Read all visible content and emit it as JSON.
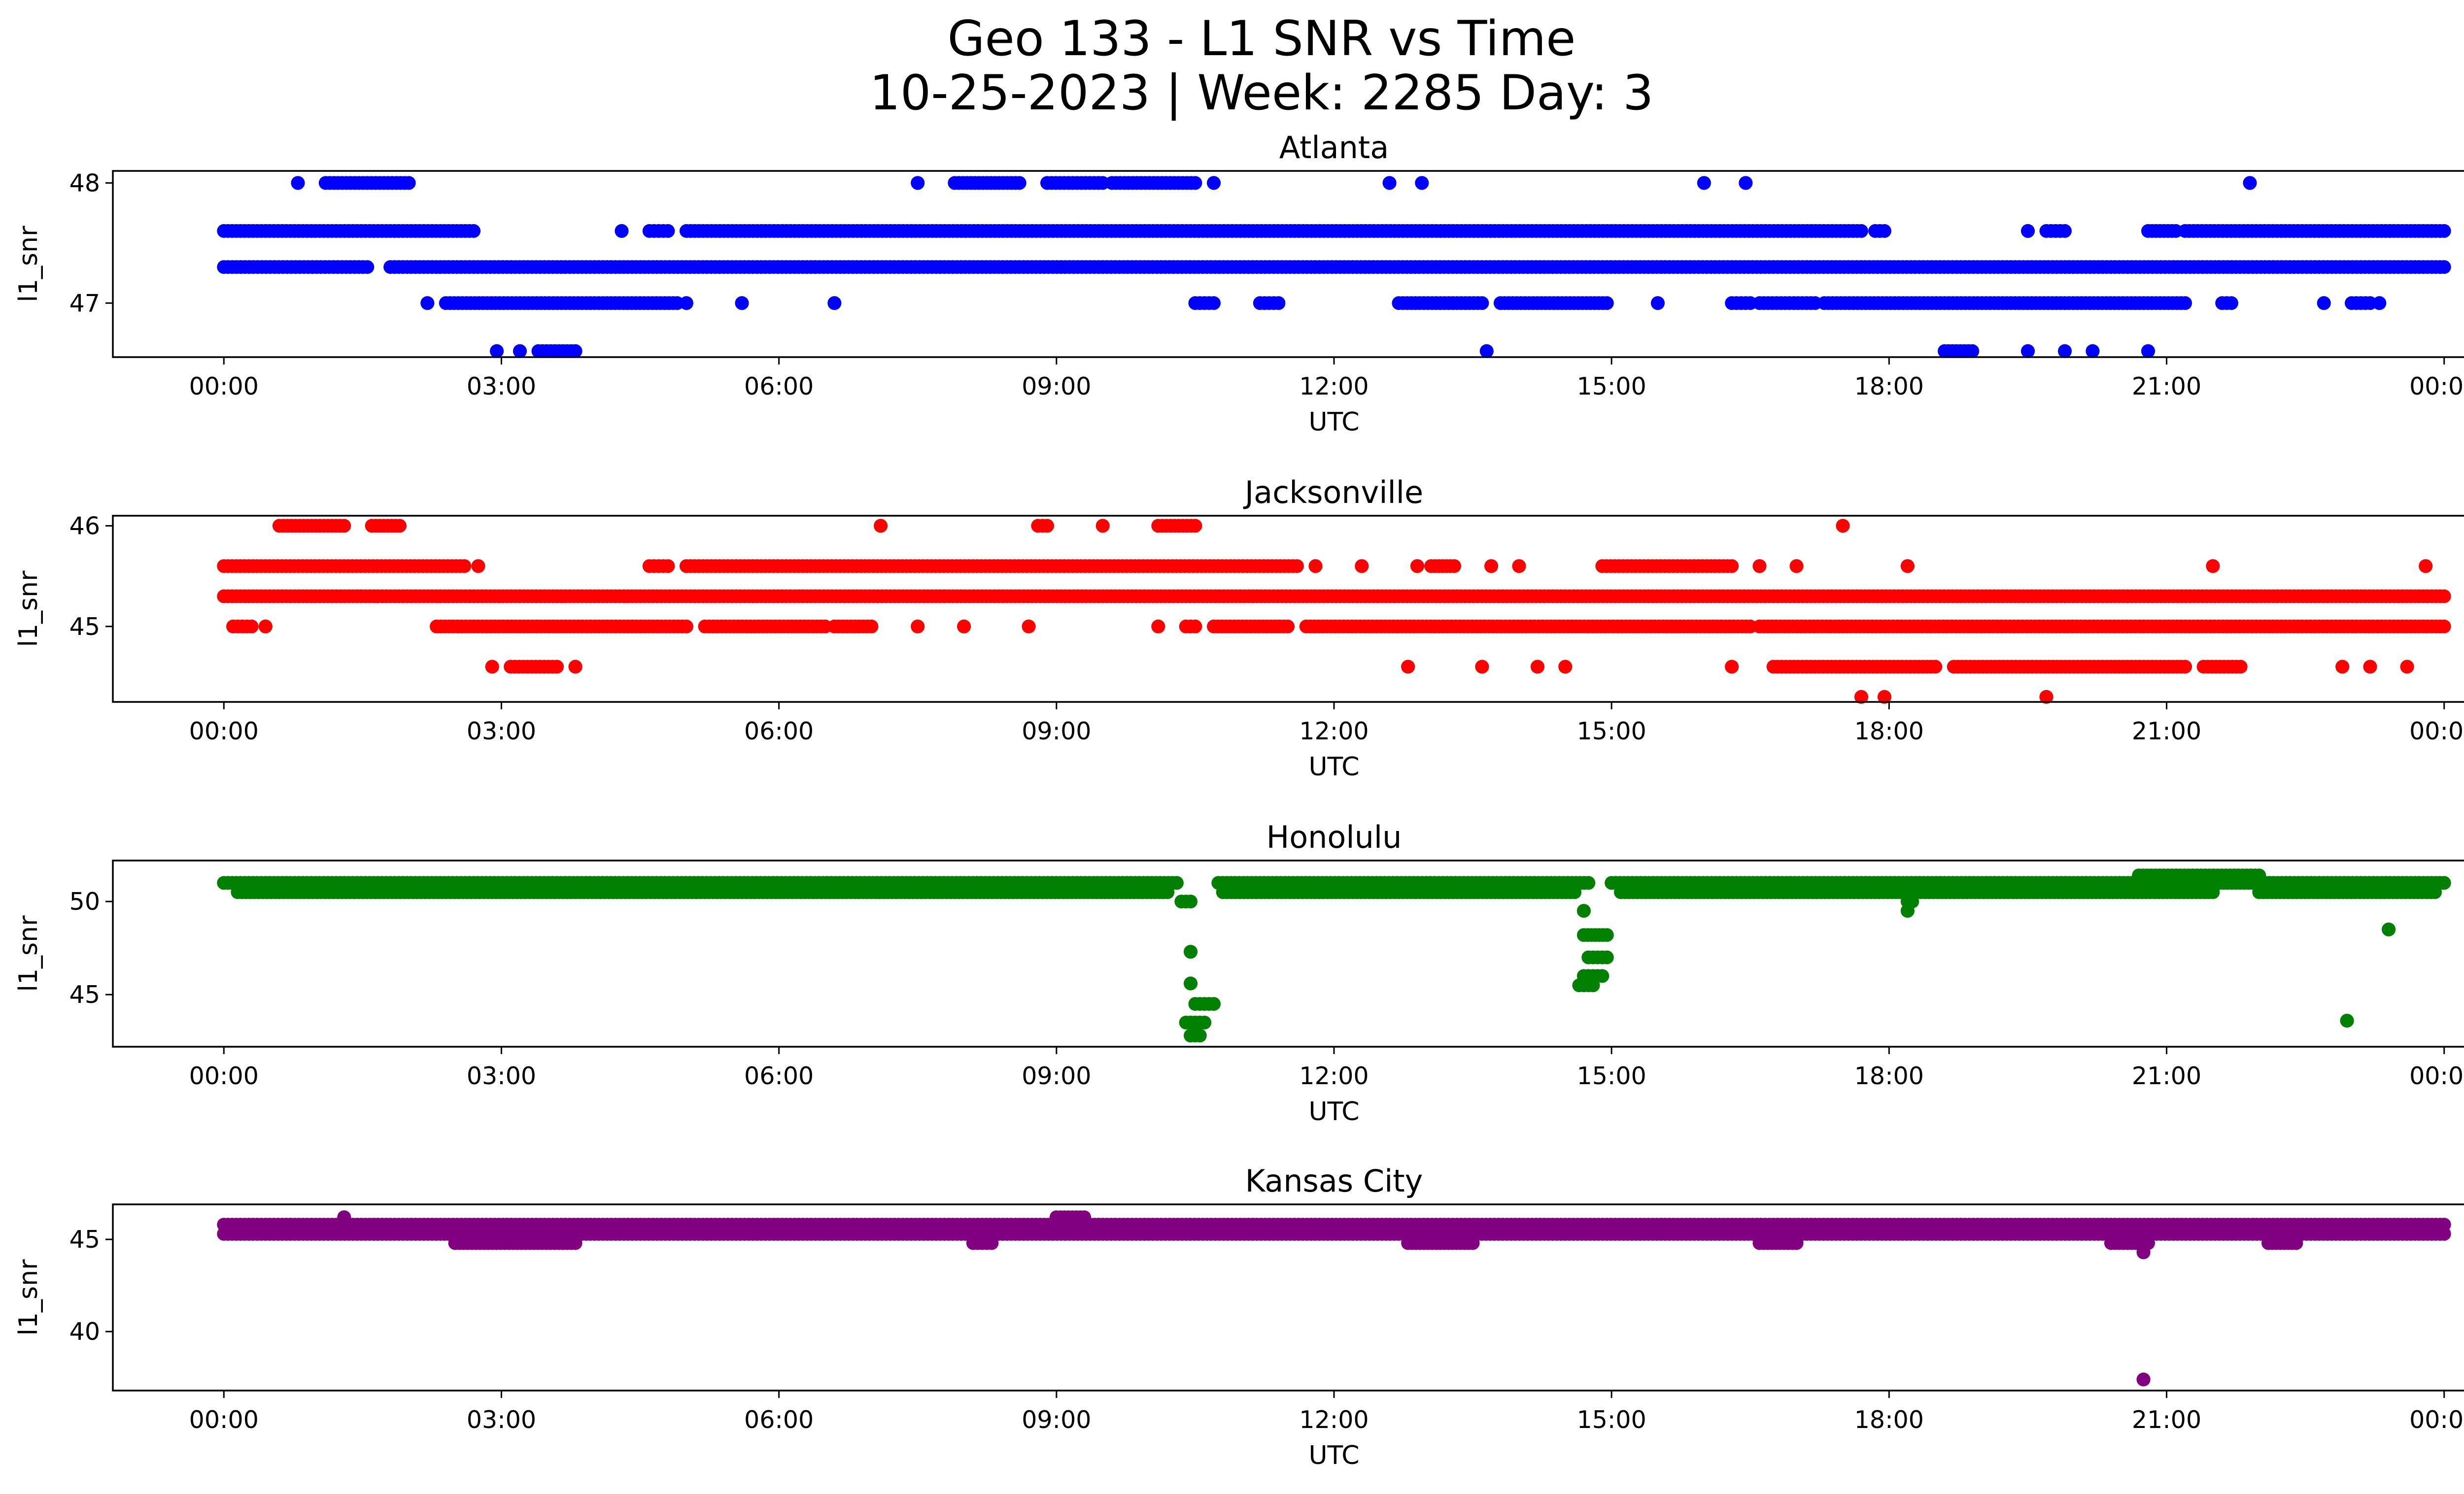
{
  "figure": {
    "title_line1": "Geo 133 - L1 SNR vs Time",
    "title_line2": "10-25-2023 | Week: 2285 Day: 3"
  },
  "chart_data": [
    {
      "type": "scatter",
      "title": "Atlanta",
      "xlabel": "UTC",
      "ylabel": "l1_snr",
      "color": "#0000ff",
      "xlim_hours": [
        -1.2,
        25.2
      ],
      "xticks": [
        "00:00",
        "03:00",
        "06:00",
        "09:00",
        "12:00",
        "15:00",
        "18:00",
        "21:00",
        "00:00"
      ],
      "ylim": [
        46.55,
        48.1
      ],
      "yticks": [
        47,
        48
      ],
      "grid": false,
      "series": [
        {
          "values": [
            {
              "y": 47.6,
              "x": [
                [
                  0.0,
                  2.7
                ],
                [
                  4.3,
                  4.3
                ],
                [
                  4.6,
                  4.8
                ],
                [
                  5.0,
                  17.7
                ],
                [
                  17.85,
                  17.95
                ],
                [
                  19.5,
                  19.5
                ],
                [
                  19.7,
                  19.9
                ],
                [
                  20.8,
                  21.1
                ],
                [
                  21.2,
                  24.0
                ]
              ]
            },
            {
              "y": 47.3,
              "x": [
                [
                  0.0,
                  1.55
                ],
                [
                  1.8,
                  24.0
                ]
              ]
            },
            {
              "y": 48.0,
              "x": [
                [
                  0.8,
                  0.8
                ],
                [
                  1.1,
                  2.0
                ],
                [
                  7.5,
                  7.5
                ],
                [
                  7.9,
                  8.6
                ],
                [
                  8.9,
                  9.5
                ],
                [
                  9.6,
                  10.5
                ],
                [
                  10.7,
                  10.7
                ],
                [
                  12.6,
                  12.6
                ],
                [
                  12.95,
                  12.95
                ],
                [
                  16.0,
                  16.0
                ],
                [
                  16.45,
                  16.45
                ],
                [
                  21.9,
                  21.9
                ]
              ]
            },
            {
              "y": 47.0,
              "x": [
                [
                  2.2,
                  2.2
                ],
                [
                  2.4,
                  4.9
                ],
                [
                  5.0,
                  5.0
                ],
                [
                  5.6,
                  5.6
                ],
                [
                  6.6,
                  6.6
                ],
                [
                  10.5,
                  10.7
                ],
                [
                  11.2,
                  11.4
                ],
                [
                  12.7,
                  13.6
                ],
                [
                  13.8,
                  14.95
                ],
                [
                  15.5,
                  15.5
                ],
                [
                  16.3,
                  16.5
                ],
                [
                  16.6,
                  17.2
                ],
                [
                  17.3,
                  21.2
                ],
                [
                  21.6,
                  21.7
                ],
                [
                  22.7,
                  22.7
                ],
                [
                  23.0,
                  23.2
                ],
                [
                  23.3,
                  23.3
                ]
              ]
            },
            {
              "y": 46.6,
              "x": [
                [
                  2.95,
                  2.95
                ],
                [
                  3.2,
                  3.2
                ],
                [
                  3.4,
                  3.8
                ],
                [
                  13.65,
                  13.65
                ],
                [
                  18.6,
                  18.9
                ],
                [
                  19.5,
                  19.5
                ],
                [
                  19.9,
                  19.9
                ],
                [
                  20.2,
                  20.2
                ],
                [
                  20.8,
                  20.8
                ]
              ]
            }
          ]
        }
      ]
    },
    {
      "type": "scatter",
      "title": "Jacksonville",
      "xlabel": "UTC",
      "ylabel": "l1_snr",
      "color": "#ff0000",
      "xlim_hours": [
        -1.2,
        25.2
      ],
      "xticks": [
        "00:00",
        "03:00",
        "06:00",
        "09:00",
        "12:00",
        "15:00",
        "18:00",
        "21:00",
        "00:00"
      ],
      "ylim": [
        44.25,
        46.1
      ],
      "yticks": [
        45,
        46
      ],
      "grid": false,
      "series": [
        {
          "values": [
            {
              "y": 45.6,
              "x": [
                [
                  0.0,
                  2.6
                ],
                [
                  2.75,
                  2.75
                ],
                [
                  4.6,
                  4.8
                ],
                [
                  5.0,
                  11.6
                ],
                [
                  11.8,
                  11.8
                ],
                [
                  12.3,
                  12.3
                ],
                [
                  12.9,
                  12.9
                ],
                [
                  13.05,
                  13.3
                ],
                [
                  13.7,
                  13.7
                ],
                [
                  14.0,
                  14.0
                ],
                [
                  14.9,
                  16.3
                ],
                [
                  16.6,
                  16.6
                ],
                [
                  17.0,
                  17.0
                ],
                [
                  18.2,
                  18.2
                ],
                [
                  21.5,
                  21.5
                ],
                [
                  23.8,
                  23.8
                ]
              ]
            },
            {
              "y": 45.3,
              "x": [
                [
                  0.0,
                  24.0
                ]
              ]
            },
            {
              "y": 45.0,
              "x": [
                [
                  0.1,
                  0.3
                ],
                [
                  0.45,
                  0.45
                ],
                [
                  2.3,
                  5.0
                ],
                [
                  5.2,
                  6.5
                ],
                [
                  6.6,
                  7.0
                ],
                [
                  7.5,
                  7.5
                ],
                [
                  8.0,
                  8.0
                ],
                [
                  8.7,
                  8.7
                ],
                [
                  10.1,
                  10.1
                ],
                [
                  10.4,
                  10.5
                ],
                [
                  10.7,
                  11.5
                ],
                [
                  11.7,
                  16.5
                ],
                [
                  16.6,
                  24.0
                ]
              ]
            },
            {
              "y": 44.6,
              "x": [
                [
                  2.9,
                  2.9
                ],
                [
                  3.1,
                  3.6
                ],
                [
                  3.8,
                  3.8
                ],
                [
                  12.8,
                  12.8
                ],
                [
                  13.6,
                  13.6
                ],
                [
                  14.2,
                  14.2
                ],
                [
                  14.5,
                  14.5
                ],
                [
                  16.3,
                  16.3
                ],
                [
                  16.75,
                  18.5
                ],
                [
                  18.7,
                  21.2
                ],
                [
                  21.4,
                  21.8
                ],
                [
                  22.9,
                  22.9
                ],
                [
                  23.2,
                  23.2
                ],
                [
                  23.6,
                  23.6
                ]
              ]
            },
            {
              "y": 46.0,
              "x": [
                [
                  0.6,
                  1.3
                ],
                [
                  1.6,
                  1.9
                ],
                [
                  7.1,
                  7.1
                ],
                [
                  8.8,
                  8.9
                ],
                [
                  9.5,
                  9.5
                ],
                [
                  10.1,
                  10.5
                ],
                [
                  17.5,
                  17.5
                ]
              ]
            },
            {
              "y": 44.3,
              "x": [
                [
                  17.7,
                  17.7
                ],
                [
                  17.95,
                  17.95
                ],
                [
                  19.7,
                  19.7
                ]
              ]
            }
          ]
        }
      ]
    },
    {
      "type": "scatter",
      "title": "Honolulu",
      "xlabel": "UTC",
      "ylabel": "l1_snr",
      "color": "#008000",
      "xlim_hours": [
        -1.2,
        25.2
      ],
      "xticks": [
        "00:00",
        "03:00",
        "06:00",
        "09:00",
        "12:00",
        "15:00",
        "18:00",
        "21:00",
        "00:00"
      ],
      "ylim": [
        42.2,
        52.2
      ],
      "yticks": [
        45,
        50
      ],
      "grid": false,
      "series": [
        {
          "values": [
            {
              "y": 51.0,
              "x": [
                [
                  0.0,
                  10.3
                ],
                [
                  10.75,
                  14.75
                ],
                [
                  15.0,
                  24.0
                ]
              ]
            },
            {
              "y": 50.5,
              "x": [
                [
                  0.15,
                  10.2
                ],
                [
                  10.8,
                  14.6
                ],
                [
                  15.1,
                  21.5
                ],
                [
                  22.0,
                  23.9
                ]
              ]
            },
            {
              "y": 51.4,
              "x": [
                [
                  20.7,
                  22.0
                ]
              ]
            },
            {
              "y": 50.0,
              "x": [
                [
                  10.35,
                  10.45
                ],
                [
                  18.2,
                  18.25
                ]
              ]
            },
            {
              "y": 49.5,
              "x": [
                [
                  18.2,
                  18.2
                ],
                [
                  14.7,
                  14.7
                ]
              ]
            },
            {
              "y": 47.3,
              "x": [
                [
                  10.45,
                  10.45
                ]
              ]
            },
            {
              "y": 45.6,
              "x": [
                [
                  10.45,
                  10.45
                ]
              ]
            },
            {
              "y": 44.5,
              "x": [
                [
                  10.5,
                  10.7
                ]
              ]
            },
            {
              "y": 43.5,
              "x": [
                [
                  10.4,
                  10.6
                ]
              ]
            },
            {
              "y": 42.8,
              "x": [
                [
                  10.45,
                  10.55
                ]
              ]
            },
            {
              "y": 48.2,
              "x": [
                [
                  14.7,
                  14.95
                ]
              ]
            },
            {
              "y": 47.0,
              "x": [
                [
                  14.75,
                  14.95
                ]
              ]
            },
            {
              "y": 46.0,
              "x": [
                [
                  14.7,
                  14.9
                ]
              ]
            },
            {
              "y": 45.5,
              "x": [
                [
                  14.65,
                  14.8
                ]
              ]
            },
            {
              "y": 48.5,
              "x": [
                [
                  23.4,
                  23.4
                ]
              ]
            },
            {
              "y": 43.6,
              "x": [
                [
                  22.95,
                  22.95
                ]
              ]
            }
          ]
        }
      ]
    },
    {
      "type": "scatter",
      "title": "Kansas City",
      "xlabel": "UTC",
      "ylabel": "l1_snr",
      "color": "#800080",
      "xlim_hours": [
        -1.2,
        25.2
      ],
      "xticks": [
        "00:00",
        "03:00",
        "06:00",
        "09:00",
        "12:00",
        "15:00",
        "18:00",
        "21:00",
        "00:00"
      ],
      "ylim": [
        36.8,
        46.9
      ],
      "yticks": [
        40,
        45
      ],
      "grid": false,
      "series": [
        {
          "values": [
            {
              "y": 45.8,
              "x": [
                [
                  0.0,
                  24.0
                ]
              ]
            },
            {
              "y": 45.3,
              "x": [
                [
                  0.0,
                  24.0
                ]
              ]
            },
            {
              "y": 44.8,
              "x": [
                [
                  2.5,
                  3.8
                ],
                [
                  8.1,
                  8.3
                ],
                [
                  12.8,
                  13.5
                ],
                [
                  16.6,
                  17.0
                ],
                [
                  20.4,
                  20.8
                ],
                [
                  22.1,
                  22.4
                ]
              ]
            },
            {
              "y": 46.2,
              "x": [
                [
                  1.3,
                  1.3
                ],
                [
                  9.0,
                  9.3
                ]
              ]
            },
            {
              "y": 44.3,
              "x": [
                [
                  20.75,
                  20.75
                ]
              ]
            },
            {
              "y": 37.4,
              "x": [
                [
                  20.75,
                  20.75
                ]
              ]
            }
          ]
        }
      ]
    }
  ]
}
